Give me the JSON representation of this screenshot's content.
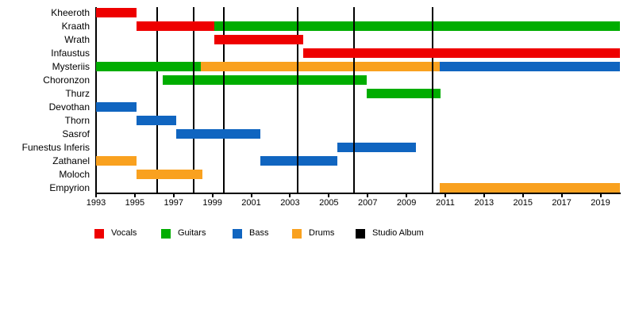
{
  "chart_data": {
    "type": "bar",
    "variant": "band-member-timeline-gantt",
    "title": "",
    "x_axis": {
      "min": 1993,
      "max": 2020,
      "tick_years": [
        1993,
        1995,
        1997,
        1999,
        2001,
        2003,
        2005,
        2007,
        2009,
        2011,
        2013,
        2015,
        2017,
        2019
      ]
    },
    "colors": {
      "vocals": "#EE0000",
      "guitars": "#00AD00",
      "bass": "#1065C0",
      "drums": "#F9A11F",
      "album": "#000000"
    },
    "album_lines": [
      1996.15,
      1998.05,
      1999.57,
      2003.39,
      2006.3,
      2010.35
    ],
    "members": [
      {
        "name": "Kheeroth",
        "segments": [
          {
            "role": "vocals",
            "from": 1993,
            "till": 1995.09
          }
        ]
      },
      {
        "name": "Kraath",
        "segments": [
          {
            "role": "vocals",
            "from": 1995.09,
            "till": 1999.1
          },
          {
            "role": "guitars",
            "from": 1999.1,
            "till": 2020,
            "album_marks": [
              1999.57,
              2003.39,
              2006.3,
              2010.35
            ]
          }
        ]
      },
      {
        "name": "Wrath",
        "segments": [
          {
            "role": "vocals",
            "from": 1999.1,
            "till": 2003.68
          }
        ]
      },
      {
        "name": "Infaustus",
        "segments": [
          {
            "role": "vocals",
            "from": 2003.68,
            "till": 2020
          }
        ]
      },
      {
        "name": "Mysteriis",
        "segments": [
          {
            "role": "guitars",
            "from": 1993,
            "till": 1998.4,
            "album_marks": [
              1998.05
            ]
          },
          {
            "role": "drums",
            "from": 1998.4,
            "till": 2010.71,
            "album_marks": [
              2003.39,
              2006.3,
              2010.35
            ]
          },
          {
            "role": "bass",
            "from": 2010.71,
            "till": 2020
          }
        ]
      },
      {
        "name": "Choronzon",
        "segments": [
          {
            "role": "guitars",
            "from": 1996.44,
            "till": 2006.95,
            "album_marks": [
              1998.05,
              1999.57,
              2003.39,
              2006.3
            ]
          }
        ]
      },
      {
        "name": "Thurz",
        "segments": [
          {
            "role": "guitars",
            "from": 2006.95,
            "till": 2010.75,
            "album_marks": [
              2010.35
            ]
          }
        ]
      },
      {
        "name": "Devothan",
        "segments": [
          {
            "role": "bass",
            "from": 1993,
            "till": 1995.09
          }
        ]
      },
      {
        "name": "Thorn",
        "segments": [
          {
            "role": "bass",
            "from": 1995.09,
            "till": 1997.13
          }
        ]
      },
      {
        "name": "Sasrof",
        "segments": [
          {
            "role": "bass",
            "from": 1997.13,
            "till": 2001.47
          }
        ]
      },
      {
        "name": "Funestus Inferis",
        "segments": [
          {
            "role": "bass",
            "from": 2005.44,
            "till": 2009.49,
            "album_marks": [
              2006.3
            ]
          }
        ]
      },
      {
        "name": "Zathanel",
        "segments": [
          {
            "role": "drums",
            "from": 1993,
            "till": 1995.09
          },
          {
            "role": "bass",
            "from": 2001.47,
            "till": 2005.44,
            "album_marks": [
              2003.39
            ]
          }
        ]
      },
      {
        "name": "Moloch",
        "segments": [
          {
            "role": "drums",
            "from": 1995.09,
            "till": 1998.48
          }
        ]
      },
      {
        "name": "Empyrion",
        "segments": [
          {
            "role": "drums",
            "from": 2010.71,
            "till": 2020
          }
        ]
      }
    ]
  },
  "legend": {
    "items": [
      {
        "label": "Vocals",
        "color_key": "vocals"
      },
      {
        "label": "Guitars",
        "color_key": "guitars"
      },
      {
        "label": "Bass",
        "color_key": "bass"
      },
      {
        "label": "Drums",
        "color_key": "drums"
      },
      {
        "label": "Studio Album",
        "color_key": "album"
      }
    ]
  }
}
